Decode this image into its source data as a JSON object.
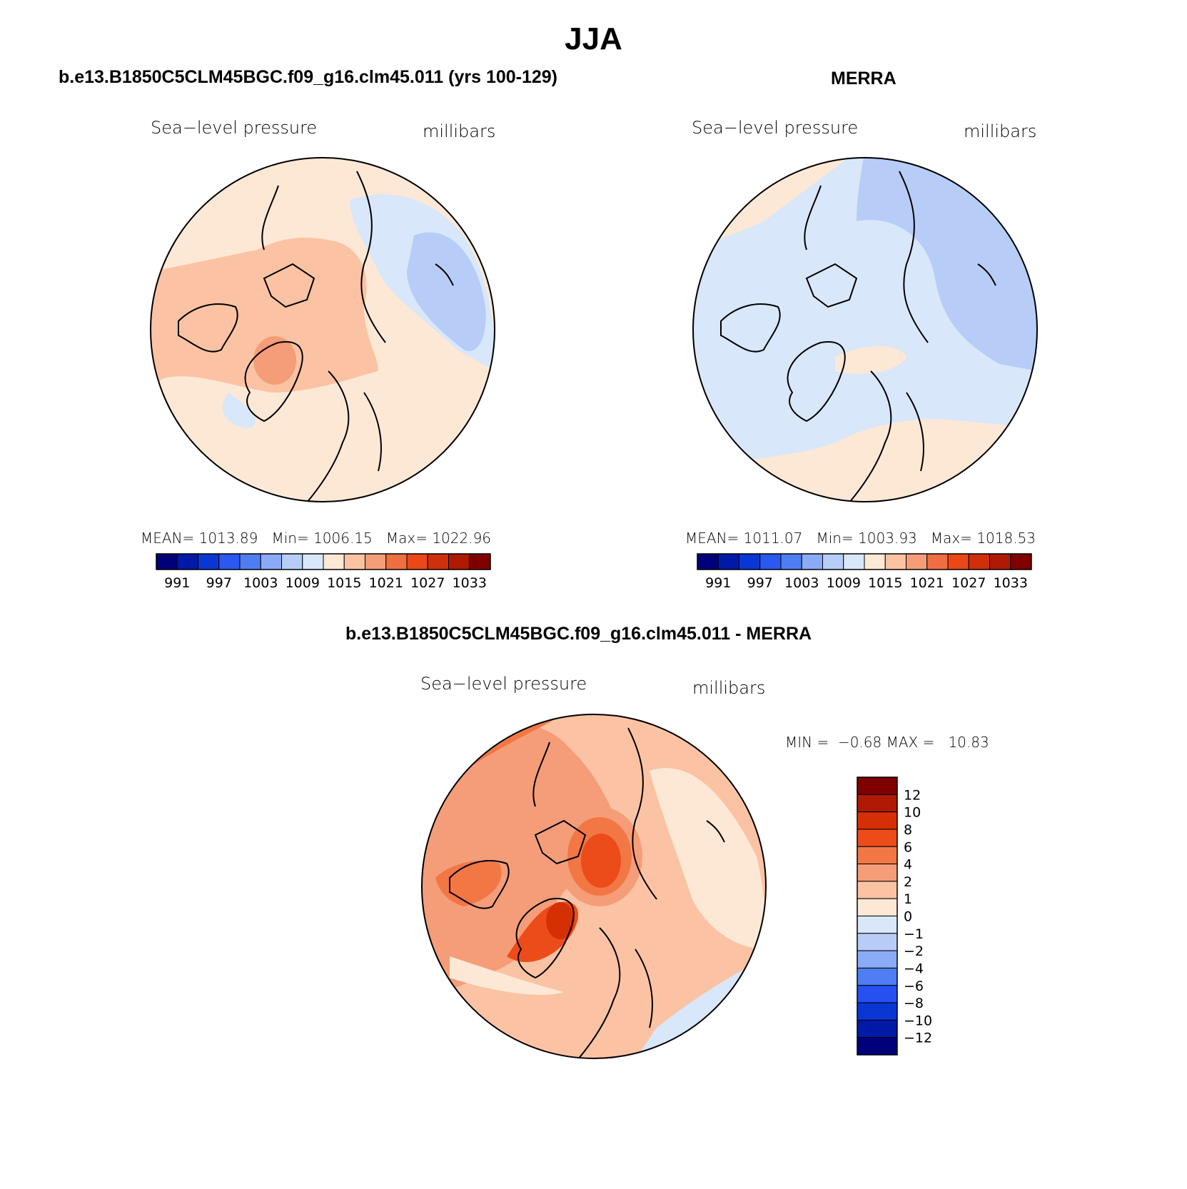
{
  "main_title": "JJA",
  "panels": {
    "model": {
      "title": "b.e13.B1850C5CLM45BGC.f09_g16.clm45.011 (yrs 100-129)",
      "variable": "Sea−level pressure",
      "units": "millibars",
      "stats": {
        "mean_label": "MEAN=",
        "mean": "1013.89",
        "min_label": "Min=",
        "min": "1006.15",
        "max_label": "Max=",
        "max": "1022.96"
      }
    },
    "obs": {
      "title": "MERRA",
      "variable": "Sea−level pressure",
      "units": "millibars",
      "stats": {
        "mean_label": "MEAN=",
        "mean": "1011.07",
        "min_label": "Min=",
        "min": "1003.93",
        "max_label": "Max=",
        "max": "1018.53"
      }
    },
    "diff": {
      "title": "b.e13.B1850C5CLM45BGC.f09_g16.clm45.011 - MERRA",
      "variable": "Sea−level pressure",
      "units": "millibars",
      "minmax": {
        "min_label": "MIN =",
        "min": "−0.68",
        "max_label": "MAX =",
        "max": "10.83"
      }
    }
  },
  "colorbar_top": {
    "colors": [
      "#00007a",
      "#0019a6",
      "#0a37d3",
      "#2b58f0",
      "#4f7df3",
      "#8aabf6",
      "#b7cdf8",
      "#d8e7fa",
      "#fde8d6",
      "#fbc3a3",
      "#f59d78",
      "#ef6f43",
      "#eb4717",
      "#cf300b",
      "#ae1a04",
      "#800000"
    ],
    "labels": [
      "991",
      "997",
      "1003",
      "1009",
      "1015",
      "1021",
      "1027",
      "1033"
    ]
  },
  "colorbar_diff": {
    "colors": [
      "#800000",
      "#ae1a04",
      "#d43004",
      "#ec4c1a",
      "#f27745",
      "#f59d78",
      "#fbc3a3",
      "#fde8d6",
      "#d8e7fa",
      "#b7cdf8",
      "#8aabf6",
      "#4f7df3",
      "#2650f0",
      "#0a37d3",
      "#0019a6",
      "#00007a"
    ],
    "labels": [
      "12",
      "10",
      "8",
      "6",
      "4",
      "2",
      "1",
      "0",
      "−1",
      "−2",
      "−4",
      "−6",
      "−8",
      "−10",
      "−12"
    ]
  }
}
